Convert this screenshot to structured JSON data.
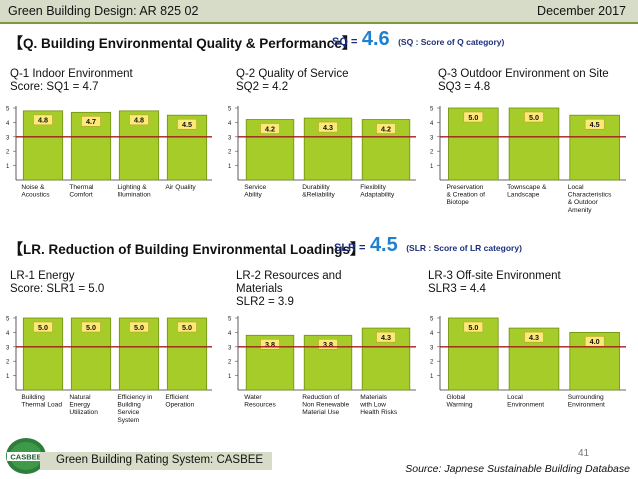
{
  "header": {
    "course": "Green Building Design: AR 825 02",
    "date": "December 2017"
  },
  "section_q": {
    "title": "Q. Building Environmental Quality & Performance",
    "score_label": "SQ =",
    "score": "4.6",
    "note": "(SQ : Score of Q category)"
  },
  "section_lr": {
    "title": "LR. Reduction of Building Environmental Loadings",
    "score_label": "SLR =",
    "score": "4.5",
    "note": "(SLR : Score of LR category)"
  },
  "footer": {
    "system": "Green Building Rating System: CASBEE",
    "page": "41",
    "source": "Source: Japnese Sustainable Building Database",
    "logo_text": "CASBEE"
  },
  "colors": {
    "bar": "#a6cc2a",
    "bar_edge": "#6e8f12",
    "reference_line": "#a31d1d",
    "label_box": "#fde97a"
  },
  "chart_data": [
    {
      "type": "bar",
      "title": "Q-1 Indoor Environment",
      "subtitle": "Score: SQ1 = 4.7",
      "categories": [
        "Noise & Acoustics",
        "Thermal Comfort",
        "Lighting & Illumination",
        "Air Quality"
      ],
      "values": [
        4.8,
        4.7,
        4.8,
        4.5
      ],
      "ylim": [
        0,
        5
      ],
      "yticks": [
        1,
        2,
        3,
        4,
        5
      ],
      "reference_line": 3
    },
    {
      "type": "bar",
      "title": "Q-2 Quality of Service",
      "subtitle": "SQ2 = 4.2",
      "categories": [
        "Service Ability",
        "Durability &Reliability",
        "Flexiblity Adaptability"
      ],
      "values": [
        4.2,
        4.3,
        4.2
      ],
      "ylim": [
        0,
        5
      ],
      "yticks": [
        1,
        2,
        3,
        4,
        5
      ],
      "reference_line": 3
    },
    {
      "type": "bar",
      "title": "Q-3 Outdoor Environment on Site",
      "subtitle": "SQ3 = 4.8",
      "categories": [
        "Preservation & Creation of Biotope",
        "Townscape & Landscape",
        "Local Characteristics & Outdoor Amenity"
      ],
      "values": [
        5.0,
        5.0,
        4.5
      ],
      "ylim": [
        0,
        5
      ],
      "yticks": [
        1,
        2,
        3,
        4,
        5
      ],
      "reference_line": 3
    },
    {
      "type": "bar",
      "title": "LR-1 Energy",
      "subtitle": "Score: SLR1 = 5.0",
      "categories": [
        "Building Thermal Load",
        "Natural Energy Utilization",
        "Efficiency in Building Service System",
        "Efficient Operation"
      ],
      "values": [
        5.0,
        5.0,
        5.0,
        5.0
      ],
      "ylim": [
        0,
        5
      ],
      "yticks": [
        1,
        2,
        3,
        4,
        5
      ],
      "reference_line": 3
    },
    {
      "type": "bar",
      "title": "LR-2 Resources and Materials",
      "subtitle": "SLR2 = 3.9",
      "categories": [
        "Water Resources",
        "Reduction of Non Renewable Material Use",
        "Materials with Low Health Risks"
      ],
      "values": [
        3.8,
        3.8,
        4.3
      ],
      "ylim": [
        0,
        5
      ],
      "yticks": [
        1,
        2,
        3,
        4,
        5
      ],
      "reference_line": 3
    },
    {
      "type": "bar",
      "title": "LR-3 Off-site Environment",
      "subtitle": "SLR3 = 4.4",
      "categories": [
        "Global Warming",
        "Local Environment",
        "Surrounding Environment"
      ],
      "values": [
        5.0,
        4.3,
        4.0
      ],
      "ylim": [
        0,
        5
      ],
      "yticks": [
        1,
        2,
        3,
        4,
        5
      ],
      "reference_line": 3
    }
  ]
}
